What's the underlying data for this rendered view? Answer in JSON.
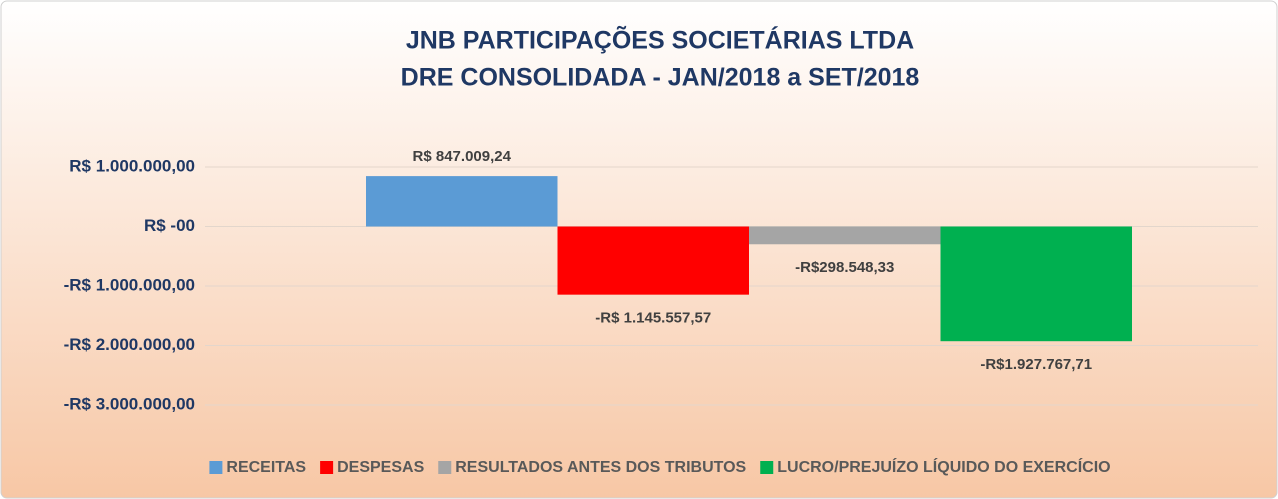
{
  "chart_data": {
    "type": "bar",
    "title": "JNB PARTICIPAÇÕES SOCIETÁRIAS LTDA",
    "subtitle": "DRE CONSOLIDADA - JAN/2018 a SET/2018",
    "categories": [
      null
    ],
    "series": [
      {
        "name": "RECEITAS",
        "color": "#5b9bd5",
        "values": [
          847009.24
        ],
        "value_labels": [
          "R$ 847.009,24"
        ]
      },
      {
        "name": "DESPESAS",
        "color": "#ff0000",
        "values": [
          -1145557.57
        ],
        "value_labels": [
          "-R$ 1.145.557,57"
        ]
      },
      {
        "name": "RESULTADOS ANTES DOS TRIBUTOS",
        "color": "#a5a5a5",
        "values": [
          -298548.33
        ],
        "value_labels": [
          "-R$298.548,33"
        ]
      },
      {
        "name": "LUCRO/PREJUÍZO LÍQUIDO DO EXERCÍCIO",
        "color": "#00b050",
        "values": [
          -1927767.71
        ],
        "value_labels": [
          "-R$1.927.767,71"
        ]
      }
    ],
    "ylim": [
      -3000000,
      1000000
    ],
    "yticks": [
      {
        "value": -3000000,
        "label": "-R$ 3.000.000,00"
      },
      {
        "value": -2000000,
        "label": "-R$ 2.000.000,00"
      },
      {
        "value": -1000000,
        "label": "-R$ 1.000.000,00"
      },
      {
        "value": 0,
        "label": "R$ -00"
      },
      {
        "value": 1000000,
        "label": "R$ 1.000.000,00"
      }
    ],
    "grid": true,
    "legend": "bottom"
  }
}
